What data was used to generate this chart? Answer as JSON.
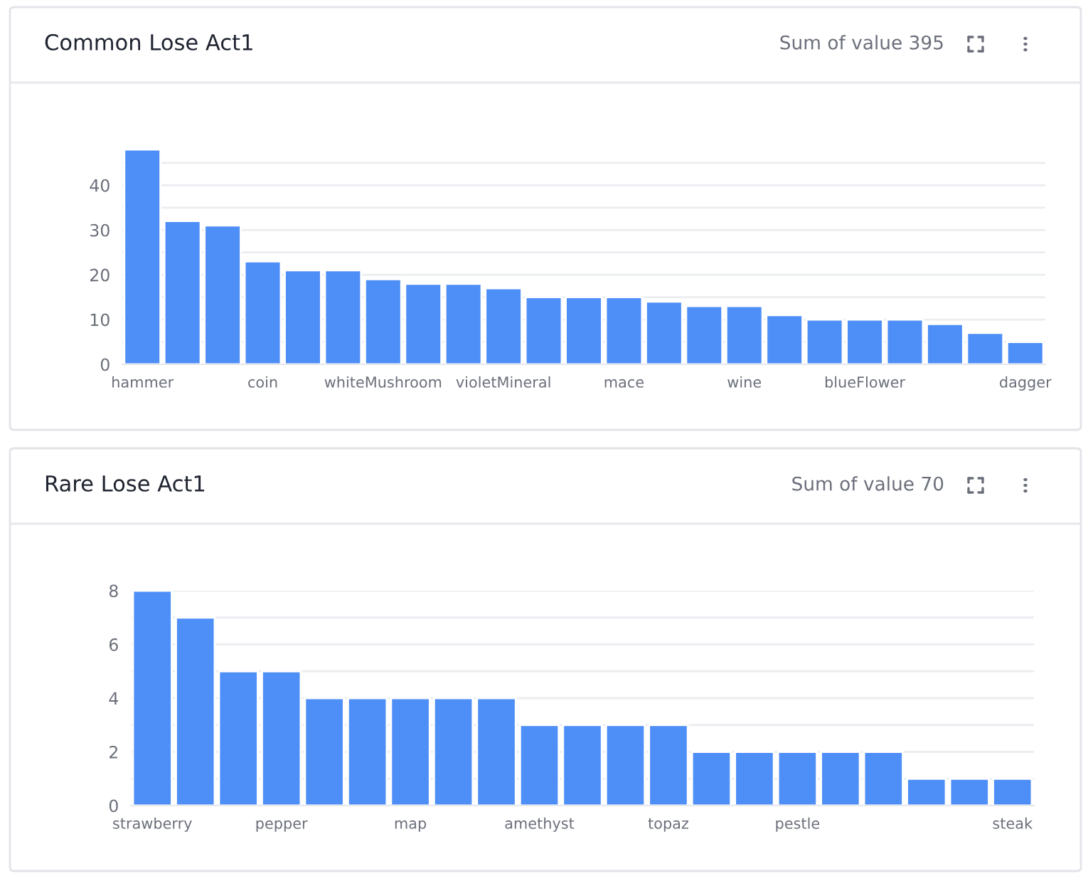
{
  "chart_data": [
    {
      "type": "bar",
      "title": "Common Lose Act1",
      "annotations": [
        "Sum of value 395"
      ],
      "categories": [
        "hammer",
        null,
        null,
        "coin",
        null,
        null,
        "whiteMushroom",
        null,
        null,
        "violetMineral",
        null,
        null,
        "mace",
        null,
        null,
        "wine",
        null,
        null,
        "blueFlower",
        null,
        null,
        null,
        "dagger"
      ],
      "values": [
        48,
        32,
        31,
        23,
        21,
        21,
        19,
        18,
        18,
        17,
        15,
        15,
        15,
        14,
        13,
        13,
        11,
        10,
        10,
        10,
        9,
        7,
        5
      ],
      "color": "#4e8ef7",
      "ylim": [
        0,
        48
      ],
      "yticks": [
        0,
        {
          "value": 5,
          "label": null
        },
        10,
        {
          "value": 15,
          "label": null
        },
        20,
        {
          "value": 25,
          "label": null
        },
        30,
        {
          "value": 35,
          "label": null
        },
        40,
        {
          "value": 45,
          "label": null
        }
      ],
      "grid": "y",
      "legend": false
    },
    {
      "type": "bar",
      "title": "Rare Lose Act1",
      "annotations": [
        "Sum of value 70"
      ],
      "categories": [
        "strawberry",
        null,
        null,
        "pepper",
        null,
        null,
        "map",
        null,
        null,
        "amethyst",
        null,
        null,
        "topaz",
        null,
        null,
        "pestle",
        null,
        null,
        null,
        null,
        "steak"
      ],
      "values": [
        8,
        7,
        5,
        5,
        4,
        4,
        4,
        4,
        4,
        3,
        3,
        3,
        3,
        2,
        2,
        2,
        2,
        2,
        1,
        1,
        1
      ],
      "color": "#4e8ef7",
      "ylim": [
        0,
        8
      ],
      "yticks": [
        0,
        {
          "value": 1,
          "label": null
        },
        2,
        {
          "value": 3,
          "label": null
        },
        4,
        {
          "value": 5,
          "label": null
        },
        6,
        {
          "value": 7,
          "label": null
        },
        8
      ],
      "grid": "y",
      "legend": false
    }
  ]
}
